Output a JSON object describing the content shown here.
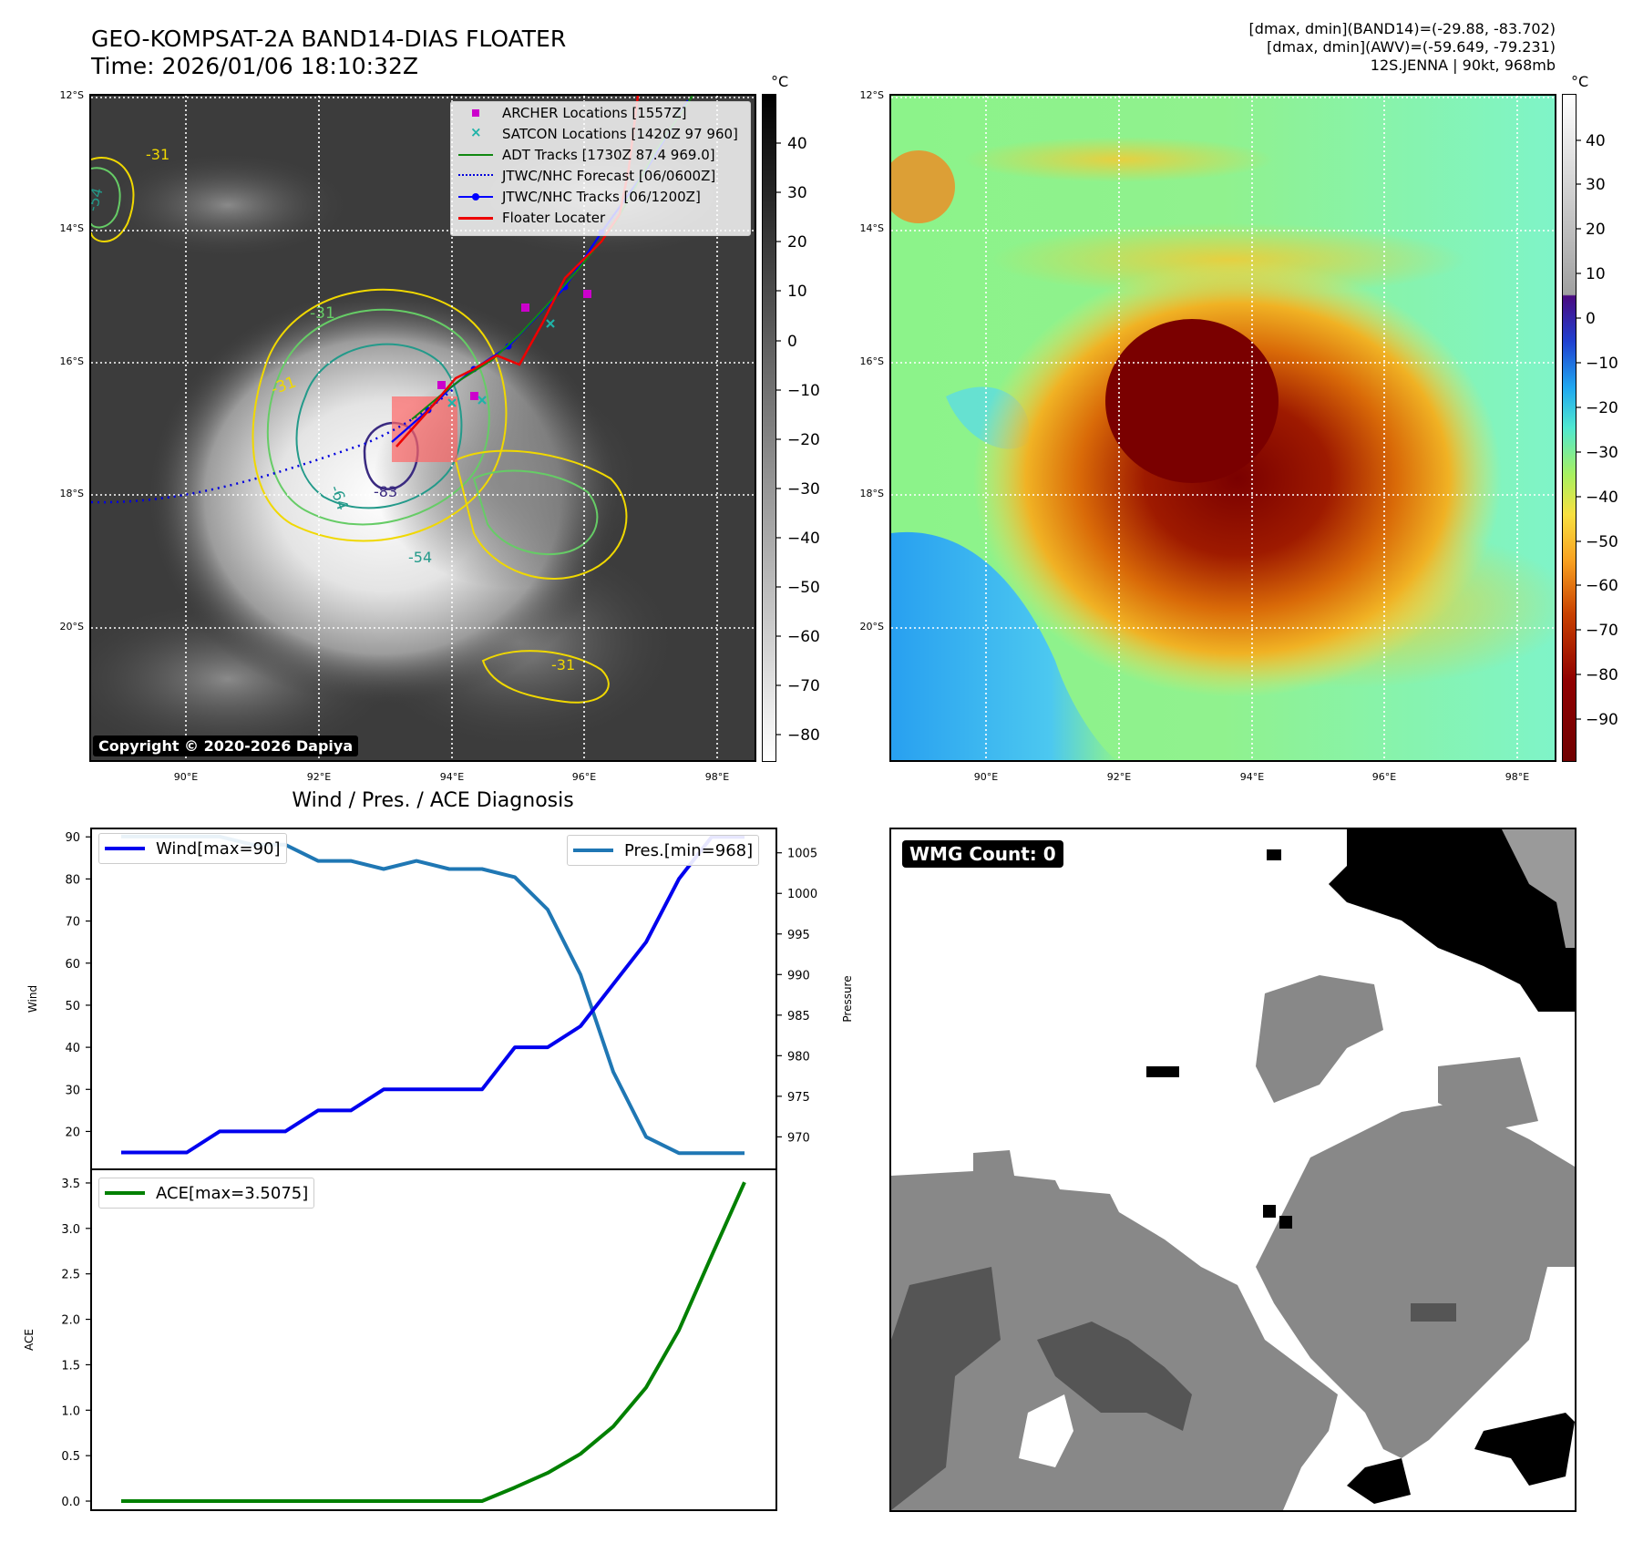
{
  "header": {
    "title_line1": "GEO-KOMPSAT-2A BAND14-DIAS FLOATER",
    "title_line2": "Time: 2026/01/06 18:10:32Z",
    "info_line1": "[dmax, dmin](BAND14)=(-29.88, -83.702)",
    "info_line2": "[dmax, dmin](AWV)=(-59.649, -79.231)",
    "info_line3": "12S.JENNA | 90kt, 968mb"
  },
  "map_axes": {
    "lat_labels": [
      "12°S",
      "14°S",
      "16°S",
      "18°S",
      "20°S"
    ],
    "lon_labels": [
      "90°E",
      "92°E",
      "94°E",
      "96°E",
      "98°E"
    ]
  },
  "ir_panel": {
    "copyright": "Copyright © 2020-2026 Dapiya",
    "colorbar_unit": "°C",
    "colorbar_ticks": [
      "40",
      "30",
      "20",
      "10",
      "0",
      "−10",
      "−20",
      "−30",
      "−40",
      "−50",
      "−60",
      "−70",
      "−80"
    ],
    "contour_labels": [
      "-54",
      "-31",
      "-31",
      "-64",
      "-83",
      "-54",
      "-31",
      "-31"
    ],
    "legend": [
      {
        "label": "ARCHER Locations [1557Z]",
        "color": "#cc00cc",
        "symbol": "square"
      },
      {
        "label": "SATCON Locations [1420Z 97 960]",
        "color": "#1fb3a8",
        "symbol": "x"
      },
      {
        "label": "ADT Tracks [1730Z 87.4 969.0]",
        "color": "#118811",
        "symbol": "line"
      },
      {
        "label": "JTWC/NHC Forecast [06/0600Z]",
        "color": "#0000dd",
        "symbol": "dotted"
      },
      {
        "label": "JTWC/NHC Tracks [06/1200Z]",
        "color": "#0000ff",
        "symbol": "line-dot"
      },
      {
        "label": "Floater Locater",
        "color": "#ee0000",
        "symbol": "line"
      }
    ]
  },
  "awv_panel": {
    "colorbar_unit": "°C",
    "colorbar_ticks": [
      "40",
      "30",
      "20",
      "10",
      "0",
      "−10",
      "−20",
      "−30",
      "−40",
      "−50",
      "−60",
      "−70",
      "−80",
      "−90"
    ]
  },
  "wmg_panel": {
    "label": "WMG Count: 0"
  },
  "diagnosis": {
    "title": "Wind / Pres. / ACE Diagnosis",
    "wind_axis_label": "Wind",
    "pressure_axis_label": "Pressure",
    "ace_axis_label": "ACE",
    "wind_legend": "Wind[max=90]",
    "pressure_legend": "Pres.[min=968]",
    "ace_legend": "ACE[max=3.5075]",
    "wind_ticks": [
      "20",
      "30",
      "40",
      "50",
      "60",
      "70",
      "80",
      "90"
    ],
    "pressure_ticks": [
      "970",
      "975",
      "980",
      "985",
      "990",
      "995",
      "1000",
      "1005"
    ],
    "ace_ticks": [
      "0.0",
      "0.5",
      "1.0",
      "1.5",
      "2.0",
      "2.5",
      "3.0",
      "3.5"
    ]
  },
  "chart_data": [
    {
      "type": "line",
      "title": "Wind / Pres. / ACE Diagnosis",
      "x": [
        0,
        1,
        2,
        3,
        4,
        5,
        6,
        7,
        8,
        9,
        10,
        11,
        12,
        13,
        14,
        15,
        16,
        17,
        18,
        19
      ],
      "series": [
        {
          "name": "Wind[max=90]",
          "axis": "left",
          "color": "#0000ee",
          "values": [
            15,
            15,
            15,
            20,
            20,
            20,
            25,
            25,
            30,
            30,
            30,
            30,
            40,
            40,
            45,
            55,
            65,
            80,
            90,
            90
          ]
        },
        {
          "name": "Pres.[min=968]",
          "axis": "right",
          "color": "#1f77b4",
          "values": [
            1007,
            1007,
            1007,
            1007,
            1006,
            1006,
            1004,
            1004,
            1003,
            1004,
            1003,
            1003,
            1002,
            998,
            990,
            978,
            970,
            968,
            968,
            968
          ]
        }
      ],
      "ylabel": "Wind",
      "ylim": [
        11,
        92
      ],
      "y2label": "Pressure",
      "y2lim": [
        966,
        1008
      ]
    },
    {
      "type": "line",
      "x": [
        0,
        1,
        2,
        3,
        4,
        5,
        6,
        7,
        8,
        9,
        10,
        11,
        12,
        13,
        14,
        15,
        16,
        17,
        18,
        19
      ],
      "series": [
        {
          "name": "ACE[max=3.5075]",
          "color": "#008000",
          "values": [
            0,
            0,
            0,
            0,
            0,
            0,
            0,
            0,
            0,
            0,
            0,
            0,
            0.15,
            0.31,
            0.52,
            0.82,
            1.25,
            1.88,
            2.7,
            3.5075
          ]
        }
      ],
      "ylabel": "ACE",
      "ylim": [
        -0.1,
        3.65
      ]
    }
  ]
}
